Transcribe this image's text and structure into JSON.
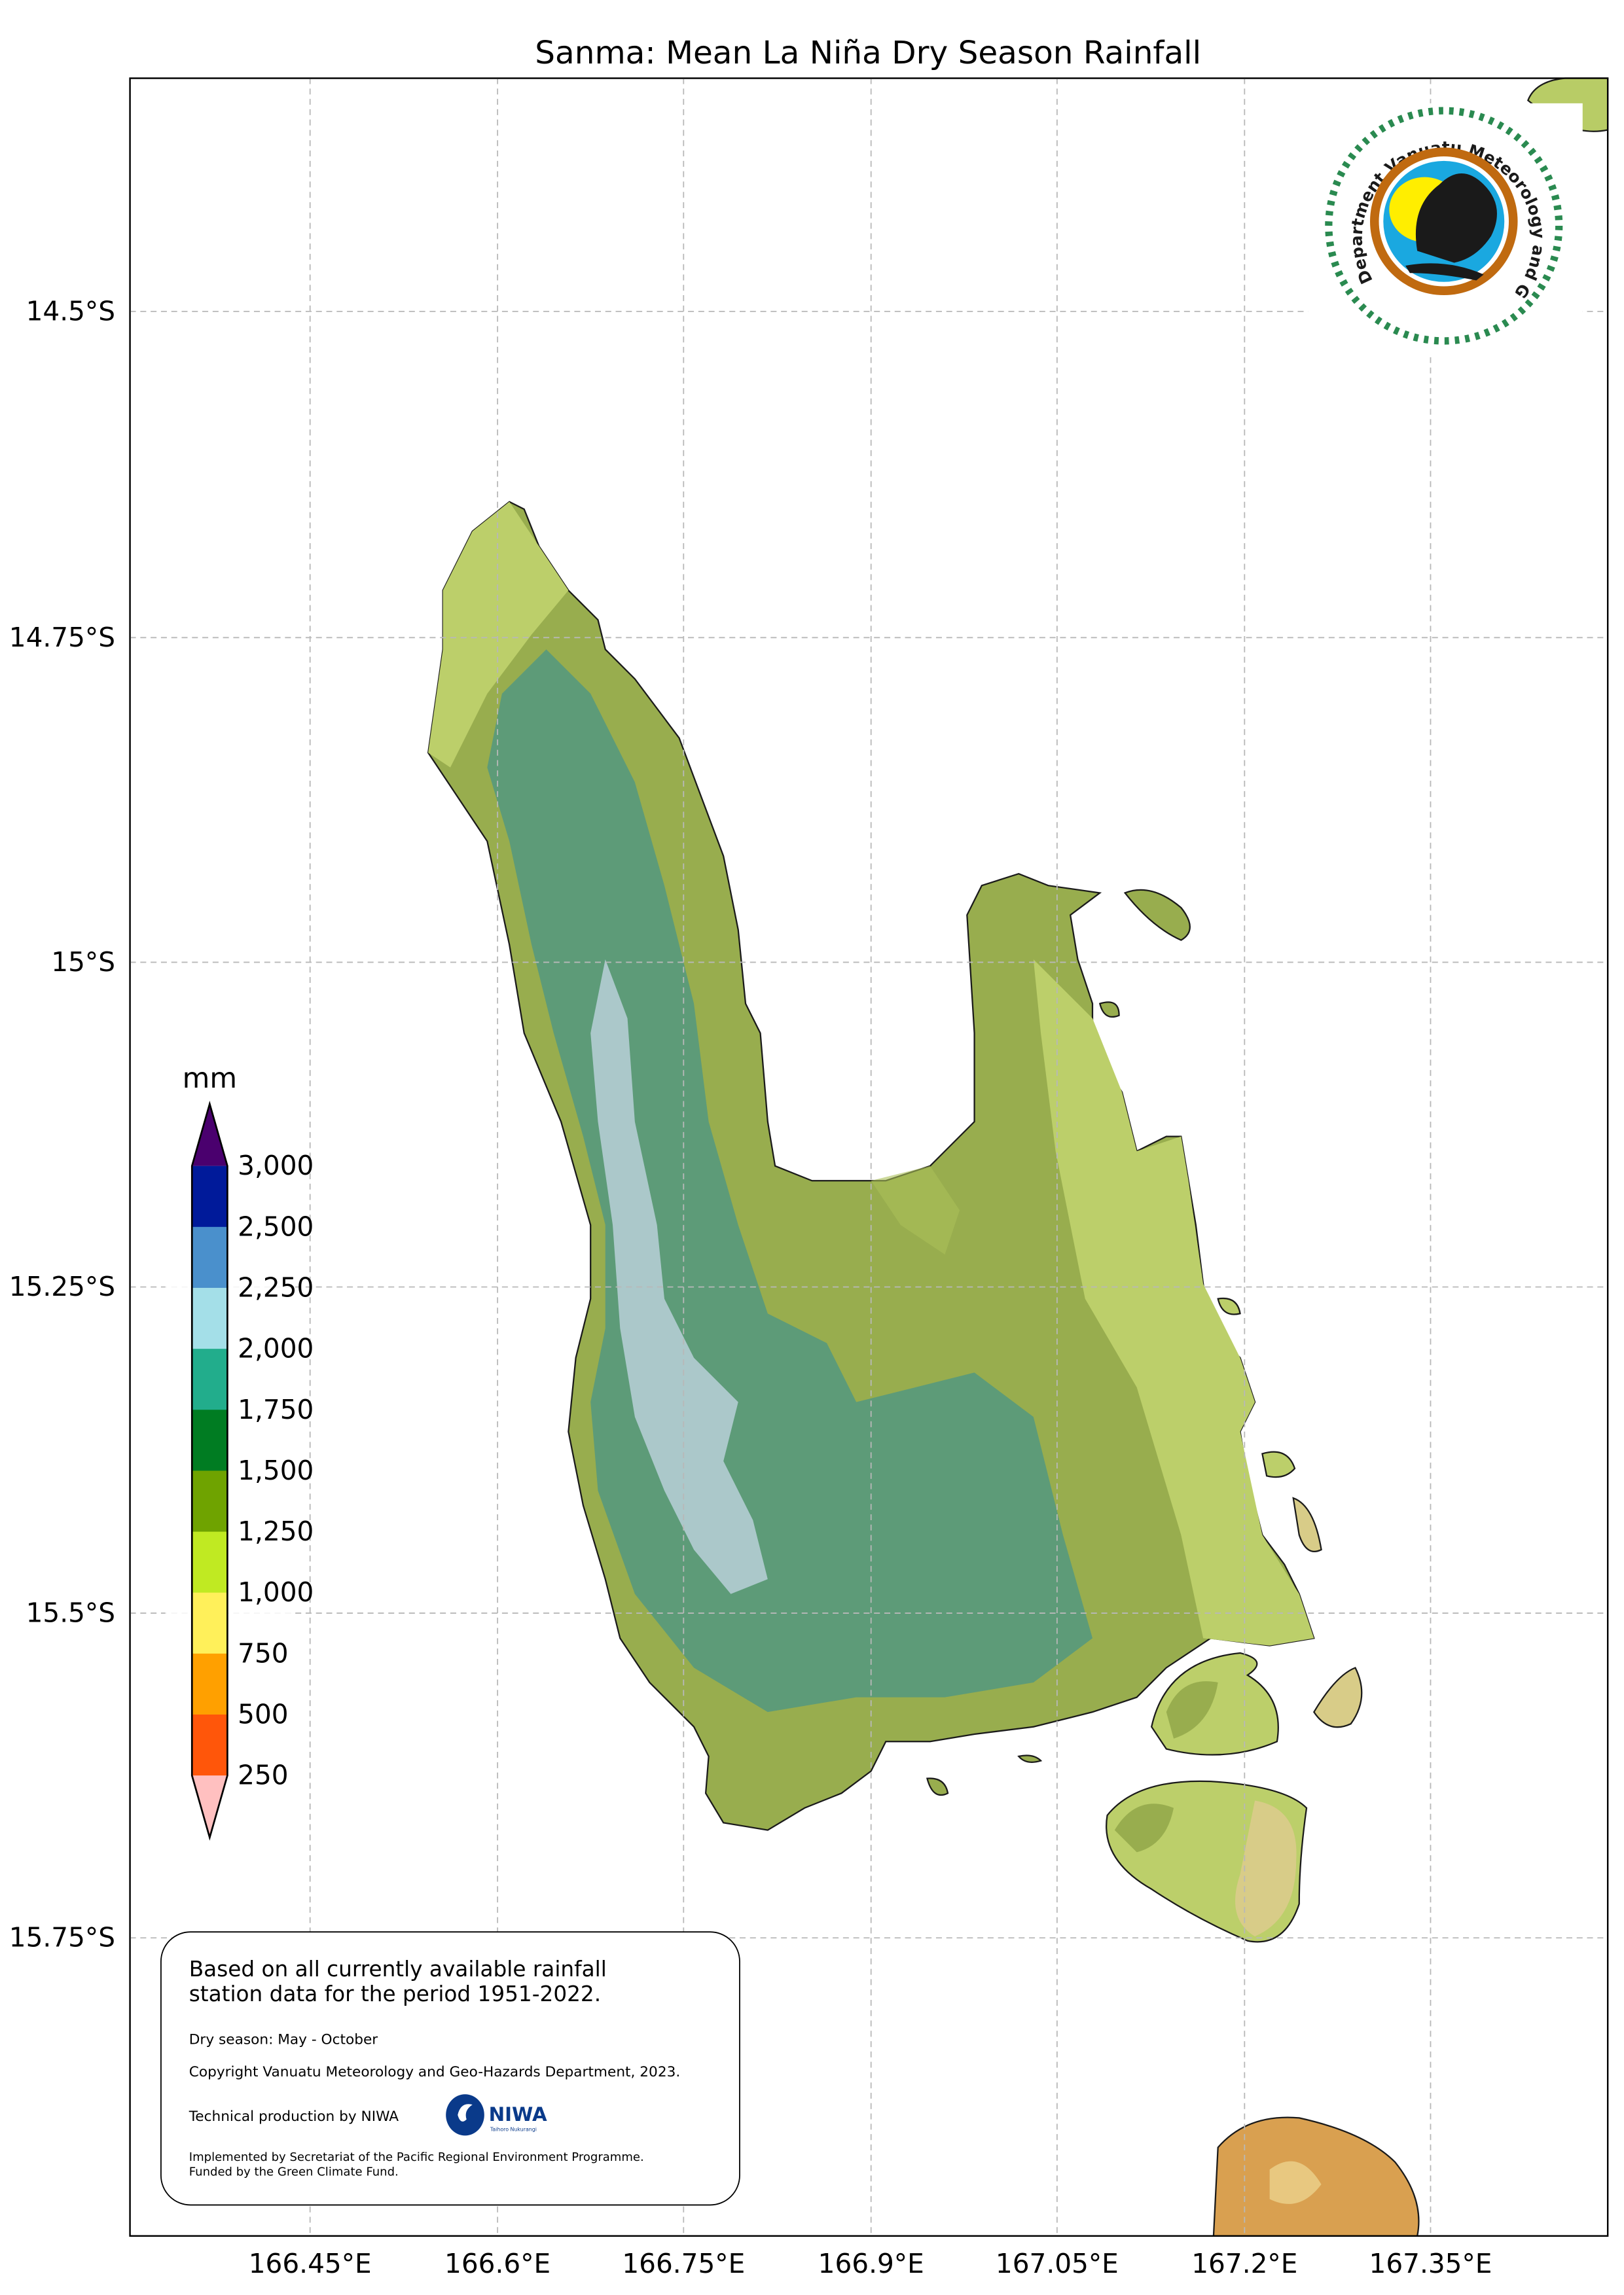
{
  "title": "Sanma: Mean La Niña Dry Season Rainfall",
  "axes": {
    "lon_ticks": [
      "166.45°E",
      "166.6°E",
      "166.75°E",
      "166.9°E",
      "167.05°E",
      "167.2°E",
      "167.35°E"
    ],
    "lat_ticks": [
      "14.5°S",
      "14.75°S",
      "15°S",
      "15.25°S",
      "15.5°S",
      "15.75°S"
    ],
    "grid": true
  },
  "colorbar": {
    "unit": "mm",
    "labels": [
      "3,000",
      "2,500",
      "2,250",
      "2,000",
      "1,750",
      "1,500",
      "1,250",
      "1,000",
      "750",
      "500",
      "250"
    ],
    "colors": [
      "#001a9a",
      "#4a90cc",
      "#a4dfe8",
      "#22ad8c",
      "#007c22",
      "#6fa300",
      "#c0ea22",
      "#fff05a",
      "#ffa000",
      "#ff560a"
    ],
    "over_color": "#4a006e",
    "under_color": "#ffc0c0",
    "extend": "both"
  },
  "info_box": {
    "line1": "Based on all currently available rainfall",
    "line2": "station data for the period 1951-2022.",
    "season": "Dry season: May - October",
    "copyright": "Copyright Vanuatu Meteorology and Geo-Hazards Department, 2023.",
    "production": "Technical production by NIWA",
    "niwa_logo_text": "NIWA",
    "niwa_logo_subtext": "Taihoro Nukurangi",
    "implemented": "Implemented by Secretariat of the Pacific Regional Environment Programme.",
    "funded": "Funded by the Green Climate Fund."
  },
  "logo": {
    "text": "Department Vanuatu Meteorology and Geo-Hazards",
    "colors": {
      "ring": "#c06a10",
      "sky": "#1aa8e0",
      "sun": "#ffee00",
      "laurel": "#2a8a50"
    }
  },
  "map_colors": {
    "lowland": "#98ad4e",
    "east_coast": "#bccf6a",
    "highland": "#5a9a7a",
    "peaks": "#b8d0d8",
    "dry_south": "#d8cc88",
    "ambae": "#d9a050"
  }
}
